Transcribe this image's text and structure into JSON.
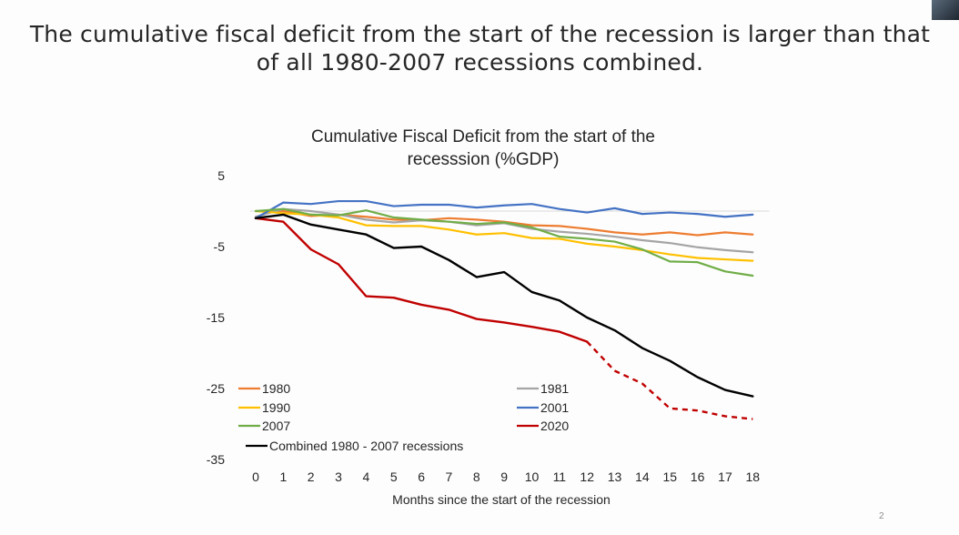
{
  "slide": {
    "title": "The cumulative fiscal deficit from the start of the recession is larger than that of all 1980-2007 recessions combined.",
    "page_number": "2"
  },
  "chart_data": {
    "type": "line",
    "title_lines": [
      "Cumulative Fiscal Deficit from the start of the",
      "recesssion (%GDP)"
    ],
    "xlabel": "Months since the start of the recession",
    "ylabel": "",
    "x": [
      0,
      1,
      2,
      3,
      4,
      5,
      6,
      7,
      8,
      9,
      10,
      11,
      12,
      13,
      14,
      15,
      16,
      17,
      18
    ],
    "ylim": [
      -35,
      5
    ],
    "yticks": [
      5,
      -5,
      -15,
      -25,
      -35
    ],
    "grid": false,
    "zero_line": true,
    "legend": "bottom-left",
    "series": [
      {
        "name": "1980",
        "color": "#ED7D31",
        "dashed_from": null,
        "values": [
          0,
          0,
          -0.7,
          -0.5,
          -0.8,
          -1.2,
          -1.3,
          -1.0,
          -1.2,
          -1.5,
          -2.0,
          -2.1,
          -2.5,
          -3.0,
          -3.3,
          -3.0,
          -3.4,
          -3.0,
          -3.3
        ]
      },
      {
        "name": "1981",
        "color": "#A5A5A5",
        "dashed_from": null,
        "values": [
          -0.8,
          0.3,
          0,
          -0.5,
          -1.2,
          -1.6,
          -1.3,
          -1.5,
          -2.0,
          -1.7,
          -2.5,
          -2.9,
          -3.2,
          -3.6,
          -4.1,
          -4.5,
          -5.1,
          -5.5,
          -5.8
        ]
      },
      {
        "name": "1990",
        "color": "#FFC000",
        "dashed_from": null,
        "values": [
          0,
          -0.3,
          -0.5,
          -0.9,
          -2.0,
          -2.1,
          -2.1,
          -2.6,
          -3.3,
          -3.1,
          -3.8,
          -3.9,
          -4.6,
          -5.0,
          -5.5,
          -6.1,
          -6.6,
          -6.8,
          -7.0
        ]
      },
      {
        "name": "2001",
        "color": "#4472C4",
        "dashed_from": null,
        "values": [
          -1.0,
          1.2,
          1.0,
          1.4,
          1.4,
          0.7,
          0.9,
          0.9,
          0.5,
          0.8,
          1.0,
          0.3,
          -0.2,
          0.4,
          -0.4,
          -0.2,
          -0.4,
          -0.8,
          -0.5
        ]
      },
      {
        "name": "2007",
        "color": "#70AD47",
        "dashed_from": null,
        "values": [
          0,
          0.3,
          -0.5,
          -0.6,
          0.1,
          -0.9,
          -1.2,
          -1.5,
          -1.8,
          -1.6,
          -2.3,
          -3.6,
          -3.9,
          -4.3,
          -5.4,
          -7.1,
          -7.2,
          -8.5,
          -9.1
        ]
      },
      {
        "name": "2020",
        "color": "#C00000",
        "dashed_from": 12,
        "values": [
          -1.0,
          -1.5,
          -5.4,
          -7.5,
          -12.0,
          -12.2,
          -13.2,
          -13.9,
          -15.2,
          -15.7,
          -16.3,
          -17.0,
          -18.4,
          -22.5,
          -24.3,
          -27.8,
          -28.1,
          -28.9,
          -29.3
        ]
      },
      {
        "name": "Combined 1980 - 2007 recessions",
        "color": "#000000",
        "dashed_from": null,
        "values": [
          -1.0,
          -0.5,
          -1.9,
          -2.6,
          -3.3,
          -5.2,
          -5.0,
          -6.9,
          -9.3,
          -8.6,
          -11.4,
          -12.6,
          -15.0,
          -16.8,
          -19.3,
          -21.1,
          -23.4,
          -25.2,
          -26.1
        ]
      }
    ]
  }
}
